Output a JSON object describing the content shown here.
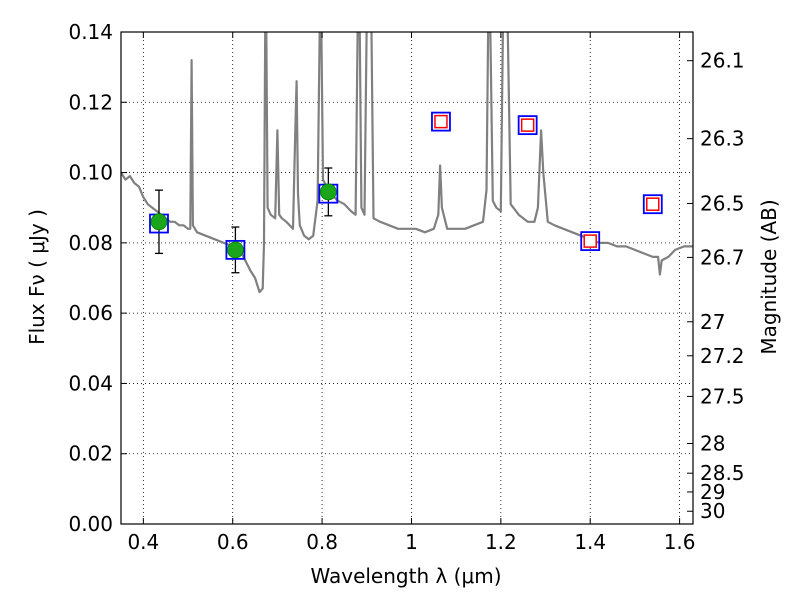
{
  "chart_data": {
    "type": "scatter",
    "xlabel": "Wavelength  λ (μm)",
    "ylabel": "Flux  Fν  ( μJy )",
    "y2label": "Magnitude (AB)",
    "xlim": [
      0.35,
      1.63
    ],
    "ylim": [
      0.0,
      0.14
    ],
    "grid": true,
    "x_ticks": [
      {
        "value": 0.4,
        "label": "0.4"
      },
      {
        "value": 0.6,
        "label": "0.6"
      },
      {
        "value": 0.8,
        "label": "0.8"
      },
      {
        "value": 1.0,
        "label": "1"
      },
      {
        "value": 1.2,
        "label": "1.2"
      },
      {
        "value": 1.4,
        "label": "1.4"
      },
      {
        "value": 1.6,
        "label": "1.6"
      }
    ],
    "y_ticks": [
      {
        "value": 0.0,
        "label": "0.00"
      },
      {
        "value": 0.02,
        "label": "0.02"
      },
      {
        "value": 0.04,
        "label": "0.04"
      },
      {
        "value": 0.06,
        "label": "0.06"
      },
      {
        "value": 0.08,
        "label": "0.08"
      },
      {
        "value": 0.1,
        "label": "0.10"
      },
      {
        "value": 0.12,
        "label": "0.12"
      },
      {
        "value": 0.14,
        "label": "0.14"
      }
    ],
    "y2_ticks": [
      {
        "mag": 26.1,
        "label": "26.1"
      },
      {
        "mag": 26.3,
        "label": "26.3"
      },
      {
        "mag": 26.5,
        "label": "26.5"
      },
      {
        "mag": 26.7,
        "label": "26.7"
      },
      {
        "mag": 27.0,
        "label": "27"
      },
      {
        "mag": 27.2,
        "label": "27.2"
      },
      {
        "mag": 27.5,
        "label": "27.5"
      },
      {
        "mag": 28.0,
        "label": "28"
      },
      {
        "mag": 28.5,
        "label": "28.5"
      },
      {
        "mag": 29.0,
        "label": "29"
      },
      {
        "mag": 30.0,
        "label": "30"
      }
    ],
    "observed_points": [
      {
        "x": 0.435,
        "y": 0.086,
        "yerr": 0.009
      },
      {
        "x": 0.606,
        "y": 0.078,
        "yerr": 0.0065
      },
      {
        "x": 0.814,
        "y": 0.0945,
        "yerr": 0.0068
      }
    ],
    "model_photometry": [
      {
        "x": 0.435,
        "y": 0.0855
      },
      {
        "x": 0.606,
        "y": 0.078
      },
      {
        "x": 0.814,
        "y": 0.094
      },
      {
        "x": 1.066,
        "y": 0.1145
      },
      {
        "x": 1.26,
        "y": 0.1135
      },
      {
        "x": 1.4,
        "y": 0.0805
      },
      {
        "x": 1.54,
        "y": 0.091
      }
    ],
    "predicted_points": [
      {
        "x": 1.066,
        "y": 0.1145
      },
      {
        "x": 1.26,
        "y": 0.1135
      },
      {
        "x": 1.4,
        "y": 0.0805
      },
      {
        "x": 1.54,
        "y": 0.091
      }
    ],
    "spectrum": [
      [
        0.35,
        0.1
      ],
      [
        0.36,
        0.098
      ],
      [
        0.37,
        0.099
      ],
      [
        0.38,
        0.097
      ],
      [
        0.39,
        0.096
      ],
      [
        0.4,
        0.093
      ],
      [
        0.41,
        0.091
      ],
      [
        0.42,
        0.09
      ],
      [
        0.43,
        0.089
      ],
      [
        0.44,
        0.088
      ],
      [
        0.45,
        0.087
      ],
      [
        0.46,
        0.086
      ],
      [
        0.47,
        0.086
      ],
      [
        0.48,
        0.085
      ],
      [
        0.49,
        0.085
      ],
      [
        0.5,
        0.084
      ],
      [
        0.505,
        0.084
      ],
      [
        0.508,
        0.132
      ],
      [
        0.511,
        0.085
      ],
      [
        0.52,
        0.083
      ],
      [
        0.54,
        0.082
      ],
      [
        0.56,
        0.081
      ],
      [
        0.58,
        0.08
      ],
      [
        0.6,
        0.079
      ],
      [
        0.62,
        0.077
      ],
      [
        0.64,
        0.072
      ],
      [
        0.65,
        0.07
      ],
      [
        0.66,
        0.066
      ],
      [
        0.667,
        0.067
      ],
      [
        0.67,
        0.08
      ],
      [
        0.673,
        0.145
      ],
      [
        0.675,
        0.145
      ],
      [
        0.678,
        0.09
      ],
      [
        0.685,
        0.088
      ],
      [
        0.695,
        0.087
      ],
      [
        0.7,
        0.112
      ],
      [
        0.704,
        0.088
      ],
      [
        0.71,
        0.087
      ],
      [
        0.72,
        0.086
      ],
      [
        0.735,
        0.084
      ],
      [
        0.74,
        0.112
      ],
      [
        0.743,
        0.126
      ],
      [
        0.746,
        0.094
      ],
      [
        0.75,
        0.085
      ],
      [
        0.76,
        0.082
      ],
      [
        0.77,
        0.081
      ],
      [
        0.78,
        0.082
      ],
      [
        0.79,
        0.092
      ],
      [
        0.795,
        0.145
      ],
      [
        0.798,
        0.145
      ],
      [
        0.802,
        0.098
      ],
      [
        0.81,
        0.096
      ],
      [
        0.82,
        0.094
      ],
      [
        0.835,
        0.092
      ],
      [
        0.85,
        0.091
      ],
      [
        0.865,
        0.089
      ],
      [
        0.875,
        0.088
      ],
      [
        0.88,
        0.145
      ],
      [
        0.884,
        0.145
      ],
      [
        0.888,
        0.09
      ],
      [
        0.895,
        0.088
      ],
      [
        0.9,
        0.145
      ],
      [
        0.904,
        0.145
      ],
      [
        0.907,
        0.145
      ],
      [
        0.91,
        0.145
      ],
      [
        0.915,
        0.087
      ],
      [
        0.93,
        0.086
      ],
      [
        0.95,
        0.085
      ],
      [
        0.97,
        0.084
      ],
      [
        0.99,
        0.084
      ],
      [
        1.01,
        0.084
      ],
      [
        1.03,
        0.083
      ],
      [
        1.05,
        0.084
      ],
      [
        1.06,
        0.088
      ],
      [
        1.064,
        0.102
      ],
      [
        1.068,
        0.09
      ],
      [
        1.08,
        0.084
      ],
      [
        1.1,
        0.084
      ],
      [
        1.12,
        0.084
      ],
      [
        1.14,
        0.085
      ],
      [
        1.16,
        0.086
      ],
      [
        1.168,
        0.095
      ],
      [
        1.172,
        0.145
      ],
      [
        1.176,
        0.145
      ],
      [
        1.182,
        0.092
      ],
      [
        1.19,
        0.09
      ],
      [
        1.2,
        0.089
      ],
      [
        1.205,
        0.145
      ],
      [
        1.21,
        0.145
      ],
      [
        1.215,
        0.145
      ],
      [
        1.222,
        0.091
      ],
      [
        1.24,
        0.088
      ],
      [
        1.26,
        0.086
      ],
      [
        1.275,
        0.086
      ],
      [
        1.283,
        0.09
      ],
      [
        1.29,
        0.112
      ],
      [
        1.295,
        0.1
      ],
      [
        1.305,
        0.086
      ],
      [
        1.32,
        0.085
      ],
      [
        1.34,
        0.084
      ],
      [
        1.36,
        0.083
      ],
      [
        1.38,
        0.082
      ],
      [
        1.4,
        0.081
      ],
      [
        1.42,
        0.08
      ],
      [
        1.44,
        0.08
      ],
      [
        1.46,
        0.079
      ],
      [
        1.48,
        0.079
      ],
      [
        1.5,
        0.078
      ],
      [
        1.52,
        0.077
      ],
      [
        1.54,
        0.076
      ],
      [
        1.552,
        0.076
      ],
      [
        1.556,
        0.071
      ],
      [
        1.56,
        0.075
      ],
      [
        1.575,
        0.076
      ],
      [
        1.59,
        0.078
      ],
      [
        1.61,
        0.079
      ],
      [
        1.63,
        0.079
      ]
    ],
    "colors": {
      "spectrum": "#808080",
      "observed_fill": "#1aa51a",
      "observed_edge": "#008000",
      "model_box": "#0000ff",
      "predicted_box": "#ff0000",
      "errorbar": "#000000",
      "grid": "#000000"
    }
  }
}
